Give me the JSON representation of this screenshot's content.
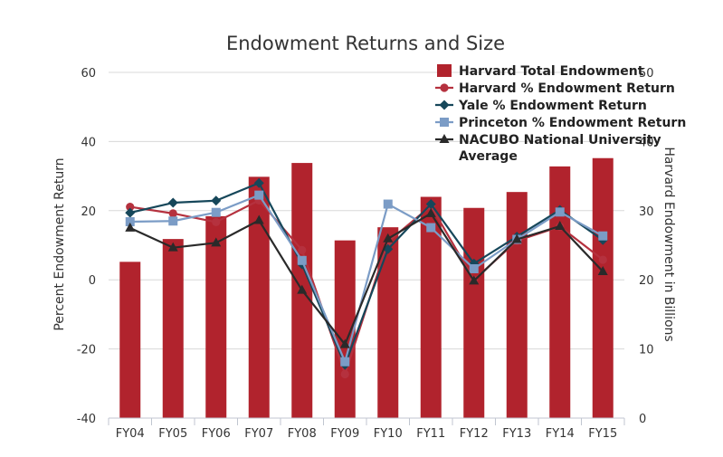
{
  "chart_data": {
    "type": "bar+line",
    "title": "Endowment Returns and Size",
    "categories": [
      "FY04",
      "FY05",
      "FY06",
      "FY07",
      "FY08",
      "FY09",
      "FY10",
      "FY11",
      "FY12",
      "FY13",
      "FY14",
      "FY15"
    ],
    "y_left": {
      "label": "Percent Endowment Return",
      "ylim": [
        -40,
        60
      ],
      "ticks": [
        "-40",
        "-20",
        "0",
        "20",
        "40",
        "60"
      ]
    },
    "y_right": {
      "label": "Harvard Endowment in Billions",
      "ylim": [
        0,
        50
      ],
      "ticks": [
        "0",
        "10",
        "20",
        "30",
        "40",
        "50"
      ]
    },
    "bars": {
      "name": "Harvard Total Endowment",
      "axis": "right",
      "color": "#b1232d",
      "values": [
        22.6,
        25.9,
        29.2,
        34.9,
        36.9,
        25.7,
        27.6,
        32.0,
        30.4,
        32.7,
        36.4,
        37.6
      ]
    },
    "series": [
      {
        "name": "Harvard % Endowment Return",
        "marker": "circle",
        "color": "#b5313e",
        "values": [
          21.1,
          19.2,
          16.7,
          23.0,
          8.6,
          -27.3,
          11.0,
          21.4,
          -0.05,
          11.3,
          15.4,
          5.8
        ]
      },
      {
        "name": "Yale % Endowment Return",
        "marker": "diamond",
        "color": "#16475a",
        "values": [
          19.4,
          22.3,
          22.9,
          28.0,
          4.5,
          -24.6,
          8.9,
          21.9,
          4.7,
          12.5,
          20.2,
          11.5
        ]
      },
      {
        "name": "Princeton % Endowment Return",
        "marker": "square",
        "color": "#7b9cc6",
        "values": [
          16.8,
          17.0,
          19.5,
          24.5,
          5.6,
          -23.7,
          21.9,
          15.1,
          3.2,
          11.7,
          19.6,
          12.7
        ]
      },
      {
        "name": "NACUBO National University Average",
        "marker": "triangle",
        "color": "#2a2a2a",
        "values": [
          15.0,
          9.3,
          10.7,
          17.2,
          -3.0,
          -18.7,
          11.9,
          19.2,
          -0.3,
          11.7,
          15.5,
          2.4
        ]
      }
    ],
    "legend": {
      "placement": "top-right",
      "entries": [
        "Harvard Total Endowment",
        "Harvard % Endowment Return",
        "Yale % Endowment Return",
        "Princeton % Endowment Return",
        "NACUBO National University Average"
      ]
    },
    "grid": true
  }
}
